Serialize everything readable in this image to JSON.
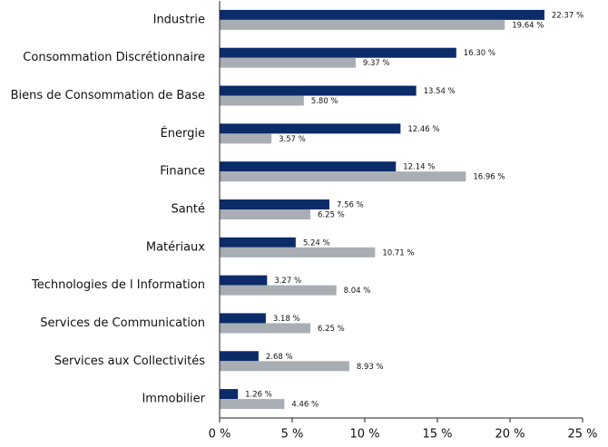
{
  "chart_data": {
    "type": "bar",
    "orientation": "horizontal",
    "categories": [
      "Industrie",
      "Consommation Discrétionnaire",
      "Biens de Consommation de Base",
      "Énergie",
      "Finance",
      "Santé",
      "Matériaux",
      "Technologies de l Information",
      "Services de Communication",
      "Services aux Collectivités",
      "Immobilier"
    ],
    "series": [
      {
        "color": "#0b2b69",
        "values": [
          22.37,
          16.3,
          13.54,
          12.46,
          12.14,
          7.56,
          5.24,
          3.27,
          3.18,
          2.68,
          1.26
        ],
        "value_labels": [
          "22.37 %",
          "16.30 %",
          "13.54 %",
          "12.46 %",
          "12.14 %",
          "7.56 %",
          "5.24 %",
          "3.27 %",
          "3.18 %",
          "2.68 %",
          "1.26 %"
        ]
      },
      {
        "color": "#a8aeb4",
        "values": [
          19.64,
          9.37,
          5.8,
          3.57,
          16.96,
          6.25,
          10.71,
          8.04,
          6.25,
          8.93,
          4.46
        ],
        "value_labels": [
          "19.64 %",
          "9.37 %",
          "5.80 %",
          "3.57 %",
          "16.96 %",
          "6.25 %",
          "10.71 %",
          "8.04 %",
          "6.25 %",
          "8.93 %",
          "4.46 %"
        ]
      }
    ],
    "xlim": [
      0,
      25
    ],
    "xticks": [
      {
        "value": 0,
        "label": "0 %"
      },
      {
        "value": 5,
        "label": "5 %"
      },
      {
        "value": 10,
        "label": "10 %"
      },
      {
        "value": 15,
        "label": "15 %"
      },
      {
        "value": 20,
        "label": "20 %"
      },
      {
        "value": 25,
        "label": "25 %"
      }
    ],
    "grid": false
  }
}
